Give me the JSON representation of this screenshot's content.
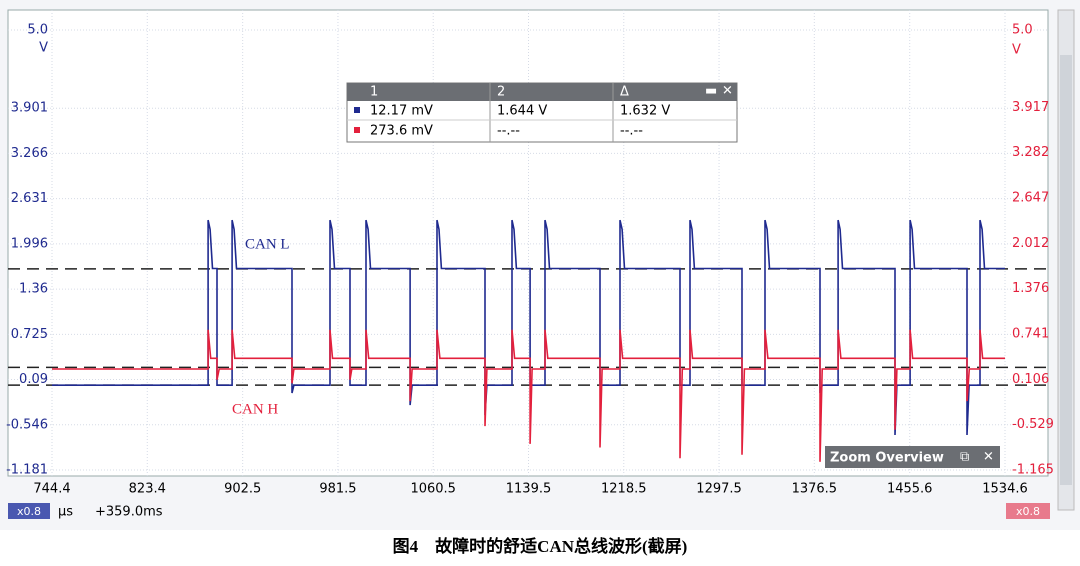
{
  "chart_data": {
    "type": "line",
    "xlim": [
      744.4,
      1534.6
    ],
    "xticks": [
      744.4,
      823.4,
      902.5,
      981.5,
      1060.5,
      1139.5,
      1218.5,
      1297.5,
      1376.5,
      1455.6,
      1534.6
    ],
    "ylim": [
      -1.181,
      5.0
    ],
    "yticks": [
      -1.181,
      -0.546,
      0.09,
      0.725,
      1.36,
      1.996,
      2.631,
      3.266,
      3.901,
      {
        "value": 5,
        "label": "5.0"
      }
    ],
    "y2lim": [
      -1.165,
      5.0
    ],
    "y2ticks": [
      -1.165,
      -0.529,
      0.106,
      0.741,
      1.376,
      2.012,
      2.647,
      3.282,
      3.917,
      {
        "value": 5,
        "label": "5.0"
      }
    ],
    "y_unit": "V",
    "y2_unit": "V",
    "grid": true,
    "reference_lines": [
      {
        "value": 1.644,
        "axis": "y"
      },
      {
        "value": 0.2736,
        "axis": "y2"
      },
      {
        "value": 0.01217,
        "axis": "y"
      }
    ],
    "series": [
      {
        "name": "CAN L",
        "color": "#1f2a8f",
        "axis": "y",
        "x": [
          744.4,
          873.8,
          873.8,
          875.5,
          877.5,
          881.2,
          881.2,
          893.7,
          893.7,
          895.4,
          897.4,
          943.4,
          943.4,
          945,
          974.9,
          974.9,
          976.6,
          978.6,
          991.5,
          991.5,
          1004.8,
          1004.8,
          1006.5,
          1008.5,
          1041.3,
          1041.3,
          1043,
          1063.6,
          1063.6,
          1065.3,
          1067.3,
          1103.4,
          1103.4,
          1105,
          1125.8,
          1125.8,
          1127.5,
          1129.5,
          1140.8,
          1140.8,
          1153.2,
          1153.2,
          1154.9,
          1156.9,
          1198.8,
          1198.8,
          1215.4,
          1215.4,
          1217.1,
          1219.1,
          1265.1,
          1265.1,
          1273.4,
          1273.4,
          1275.1,
          1277.1,
          1316.5,
          1316.5,
          1335.6,
          1335.6,
          1337.3,
          1339.3,
          1381.2,
          1381.2,
          1383,
          1396.2,
          1396.2,
          1397.9,
          1399.9,
          1443.4,
          1443.4,
          1445,
          1455.9,
          1455.9,
          1457.6,
          1459.6,
          1503.1,
          1503.1,
          1504.8,
          1513.9,
          1513.9,
          1515.6,
          1517.6,
          1534.6
        ],
        "values": [
          0.01,
          0.01,
          2.33,
          2.2,
          1.65,
          1.65,
          0.01,
          0.01,
          2.33,
          2.2,
          1.65,
          1.65,
          -0.1,
          0.01,
          0.01,
          2.33,
          2.2,
          1.65,
          1.65,
          0.01,
          0.01,
          2.33,
          2.2,
          1.65,
          1.65,
          -0.27,
          0.01,
          0.01,
          2.33,
          2.2,
          1.65,
          1.65,
          -0.41,
          0.01,
          0.01,
          2.33,
          2.2,
          1.65,
          1.65,
          0.01,
          0.01,
          2.33,
          2.2,
          1.65,
          1.65,
          0.01,
          0.01,
          2.33,
          2.2,
          1.65,
          1.65,
          0.01,
          0.01,
          2.33,
          2.2,
          1.65,
          1.65,
          0.01,
          0.01,
          2.33,
          2.2,
          1.65,
          1.65,
          -0.1,
          0.01,
          0.01,
          2.33,
          2.2,
          1.65,
          1.65,
          -0.69,
          0.01,
          0.01,
          2.33,
          2.2,
          1.65,
          1.65,
          -0.69,
          0.01,
          0.01,
          2.33,
          2.2,
          1.65,
          1.65
        ]
      },
      {
        "name": "CAN H",
        "color": "#e3203c",
        "axis": "y2",
        "x": [
          744.4,
          873.8,
          873.8,
          876,
          881.2,
          881.2,
          883,
          893.7,
          893.7,
          896,
          943.4,
          943.4,
          945,
          974.9,
          974.9,
          977,
          991.5,
          991.5,
          993,
          1004.8,
          1004.8,
          1007,
          1041.3,
          1041.3,
          1043,
          1063.6,
          1063.6,
          1066,
          1103.4,
          1103.4,
          1105,
          1125.8,
          1125.8,
          1128,
          1140.8,
          1140.8,
          1142.5,
          1153.2,
          1153.2,
          1155.5,
          1198.8,
          1198.8,
          1200.5,
          1215.4,
          1215.4,
          1217.5,
          1265.1,
          1265.1,
          1267,
          1273.4,
          1273.4,
          1275.5,
          1316.5,
          1316.5,
          1318.5,
          1335.6,
          1335.6,
          1338,
          1381.2,
          1381.2,
          1383,
          1396.2,
          1396.2,
          1398.5,
          1443.4,
          1443.4,
          1445,
          1455.9,
          1455.9,
          1458,
          1503.1,
          1503.1,
          1505,
          1513.9,
          1513.9,
          1516,
          1534.6
        ],
        "values": [
          0.25,
          0.25,
          0.8,
          0.4,
          0.4,
          0.1,
          0.25,
          0.25,
          0.8,
          0.4,
          0.4,
          0.05,
          0.25,
          0.25,
          0.8,
          0.4,
          0.4,
          0.1,
          0.25,
          0.25,
          0.8,
          0.4,
          0.4,
          -0.2,
          0.25,
          0.25,
          0.8,
          0.4,
          0.4,
          -0.55,
          0.25,
          0.25,
          0.8,
          0.4,
          0.4,
          -0.8,
          0.25,
          0.25,
          0.8,
          0.4,
          0.4,
          -0.85,
          0.25,
          0.25,
          0.8,
          0.4,
          0.4,
          -1.0,
          0.25,
          0.25,
          0.8,
          0.4,
          0.4,
          -0.95,
          0.25,
          0.25,
          0.8,
          0.4,
          0.4,
          -1.05,
          0.25,
          0.25,
          0.8,
          0.4,
          0.4,
          -0.6,
          0.25,
          0.25,
          0.8,
          0.4,
          0.4,
          -0.2,
          0.25,
          0.25,
          0.8,
          0.4,
          0.4
        ]
      }
    ]
  },
  "measurement_table": {
    "headers": [
      "1",
      "2",
      "Δ"
    ],
    "rows": [
      [
        "12.17 mV",
        "1.644 V",
        "1.632 V"
      ],
      [
        "273.6 mV",
        "--.--",
        "--.--"
      ]
    ]
  },
  "zoom_overview": "Zoom Overview",
  "status_bar": {
    "scale_left": "x0.8",
    "unit": "µs",
    "offset": "+359.0ms",
    "scale_right": "x0.8"
  },
  "caption": "图4　故障时的舒适CAN总线波形(截屏)"
}
